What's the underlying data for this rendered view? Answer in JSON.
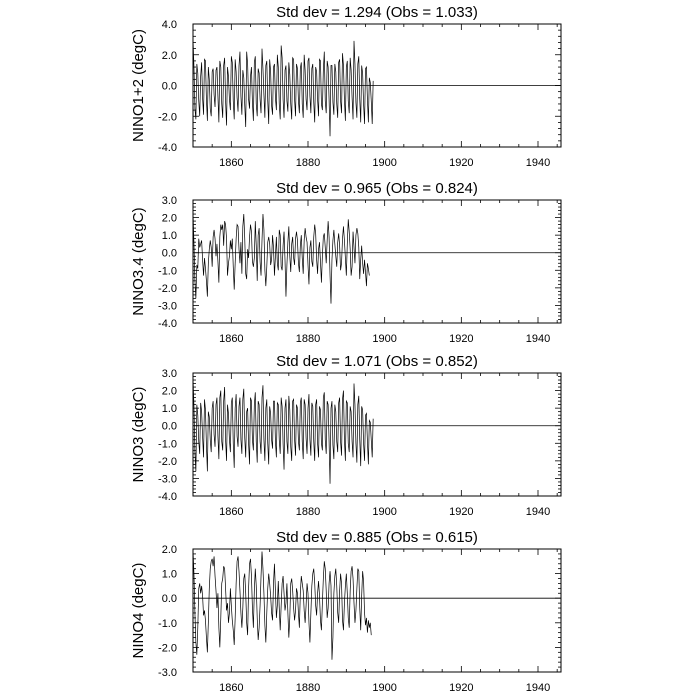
{
  "chart_data": [
    {
      "type": "line",
      "title": "Std dev = 1.294 (Obs = 1.033)",
      "ylabel": "NINO1+2 (degC)",
      "xlabel": "",
      "xlim": [
        1850,
        1946
      ],
      "ylim": [
        -4.0,
        4.0
      ],
      "y_tick_values": [
        -4,
        -2,
        0,
        2,
        4
      ],
      "y_tick_labels": [
        "-4.0",
        "-2.0",
        "0.0",
        "2.0",
        "4.0"
      ],
      "x_tick_values": [
        1860,
        1880,
        1900,
        1920,
        1940
      ],
      "x_tick_labels": [
        "1860",
        "1880",
        "1900",
        "1920",
        "1940"
      ],
      "reference_line": 0,
      "series": [
        {
          "name": "NINO1+2",
          "x_start": 1850,
          "x_step": 0.25,
          "values": [
            3.1,
            1.2,
            -1.5,
            -2.2,
            1.4,
            0.8,
            -1.0,
            -2.0,
            0.6,
            1.5,
            -0.8,
            -1.9,
            1.7,
            1.6,
            -0.9,
            -2.3,
            1.2,
            0.4,
            -1.5,
            -2.0,
            0.9,
            1.1,
            -0.6,
            -1.4,
            1.0,
            1.2,
            -0.7,
            -2.4,
            1.6,
            1.2,
            -1.2,
            -2.1,
            1.3,
            1.8,
            -1.0,
            -2.6,
            1.2,
            0.6,
            -0.9,
            -1.6,
            1.9,
            1.5,
            -1.0,
            -2.2,
            1.7,
            0.9,
            -0.8,
            -1.7,
            1.3,
            2.2,
            -0.7,
            -1.9,
            1.0,
            0.5,
            -1.3,
            -2.7,
            2.2,
            1.4,
            -0.9,
            -1.5,
            0.6,
            1.2,
            -1.1,
            -2.3,
            1.5,
            1.9,
            -1.2,
            -2.0,
            1.1,
            0.8,
            -0.9,
            -1.8,
            2.4,
            1.1,
            -0.6,
            -2.1,
            1.3,
            1.6,
            -1.0,
            -2.5,
            1.7,
            0.9,
            -1.3,
            -1.9,
            1.2,
            1.4,
            -0.8,
            -1.6,
            2.0,
            1.2,
            -1.2,
            -2.2,
            2.6,
            1.8,
            -0.9,
            -2.1,
            1.0,
            1.3,
            -1.0,
            -1.7,
            1.5,
            0.7,
            -1.2,
            -2.2,
            1.8,
            1.7,
            -0.9,
            -2.0,
            1.4,
            1.1,
            -1.0,
            -1.8,
            1.1,
            1.5,
            -1.2,
            -2.1,
            2.0,
            1.0,
            -0.9,
            -1.6,
            1.6,
            1.8,
            -0.7,
            -1.8,
            1.1,
            1.4,
            -1.1,
            -2.4,
            1.2,
            0.9,
            -0.9,
            -2.0,
            1.7,
            1.6,
            -1.2,
            -1.6,
            1.0,
            2.2,
            -1.0,
            -1.8,
            1.6,
            1.2,
            -0.9,
            -3.3,
            1.3,
            1.3,
            -1.1,
            -1.9,
            1.4,
            0.9,
            -1.2,
            -2.1,
            1.5,
            1.7,
            -1.0,
            -1.8,
            2.1,
            1.3,
            -0.9,
            -2.3,
            1.2,
            1.6,
            -1.0,
            -1.8,
            1.8,
            1.0,
            -0.8,
            -2.2,
            2.9,
            1.4,
            -1.1,
            -2.1,
            1.4,
            1.9,
            -0.9,
            -2.4,
            1.3,
            0.8,
            -1.2,
            -2.5,
            1.1,
            1.2,
            -0.9,
            -2.4,
            0.5,
            0.2,
            -1.0,
            -2.5,
            0.3
          ]
        }
      ]
    },
    {
      "type": "line",
      "title": "Std dev = 0.965 (Obs = 0.824)",
      "ylabel": "NINO3.4 (degC)",
      "xlabel": "",
      "xlim": [
        1850,
        1946
      ],
      "ylim": [
        -4.0,
        3.0
      ],
      "y_tick_values": [
        -4,
        -3,
        -2,
        -1,
        0,
        1,
        2,
        3
      ],
      "y_tick_labels": [
        "-4.0",
        "-3.0",
        "-2.0",
        "-1.0",
        "0.0",
        "1.0",
        "2.0",
        "3.0"
      ],
      "x_tick_values": [
        1860,
        1880,
        1900,
        1920,
        1940
      ],
      "x_tick_labels": [
        "1860",
        "1880",
        "1900",
        "1920",
        "1940"
      ],
      "reference_line": 0,
      "series": [
        {
          "name": "NINO3.4",
          "x_start": 1850,
          "x_step": 0.25,
          "values": [
            2.4,
            0.5,
            -1.6,
            -2.6,
            -0.7,
            -0.9,
            0.8,
            0.3,
            0.5,
            0.7,
            -0.4,
            -1.3,
            -0.3,
            -0.9,
            -1.6,
            -2.5,
            -0.6,
            0.2,
            0.7,
            0.3,
            -0.8,
            0.9,
            1.3,
            0.8,
            -0.2,
            0.5,
            -0.5,
            -1.7,
            0.9,
            1.6,
            1.3,
            1.6,
            0.4,
            1.8,
            1.6,
            0.8,
            -1.3,
            -0.6,
            -0.2,
            0.7,
            0.2,
            0.8,
            -0.8,
            -2.1,
            -0.6,
            0.8,
            1.6,
            1.5,
            0.2,
            -0.6,
            0.6,
            -1.2,
            1.5,
            2.2,
            0.8,
            -1.2,
            -1.5,
            0.2,
            -0.3,
            0.9,
            1.6,
            1.2,
            -0.5,
            -0.8,
            -0.3,
            1.8,
            0.4,
            -1.6,
            1.0,
            1.4,
            -0.5,
            -1.3,
            0.7,
            2.2,
            1.3,
            -1.0,
            -1.9,
            -0.8,
            0.6,
            0.9,
            0.5,
            -0.7,
            -0.4,
            1.0,
            0.3,
            -1.3,
            -0.2,
            0.9,
            -0.6,
            -1.0,
            1.3,
            1.0,
            -0.8,
            -1.0,
            0.4,
            1.2,
            -0.4,
            -2.5,
            -0.7,
            0.6,
            1.5,
            -0.2,
            -1.1,
            0.5,
            0.9,
            -0.3,
            -0.7,
            0.8,
            1.2,
            0.7,
            -0.6,
            -1.1,
            0.4,
            1.0,
            -0.3,
            -1.2,
            0.7,
            1.4,
            0.9,
            0.6,
            -0.7,
            -1.8,
            0.3,
            0.7,
            -0.5,
            -0.8,
            0.9,
            1.6,
            1.1,
            -0.4,
            -1.2,
            0.2,
            0.6,
            -0.5,
            -1.7,
            -0.2,
            0.9,
            1.1,
            0.3,
            -0.6,
            0.7,
            1.8,
            0.9,
            -1.3,
            -2.9,
            -0.4,
            0.7,
            1.3,
            0.5,
            -0.2,
            -0.8,
            0.6,
            1.1,
            0.4,
            -1.0,
            -0.6,
            0.8,
            1.5,
            0.7,
            -0.3,
            -1.3,
            0.5,
            1.9,
            1.2,
            0.2,
            -1.3,
            -0.8,
            1.2,
            0.3,
            -0.6,
            1.0,
            1.4,
            1.1,
            0.3,
            -1.5,
            -0.4,
            0.4,
            -0.6,
            -1.2,
            -0.4,
            -1.1,
            -1.9,
            -0.6,
            -0.9,
            -1.3
          ]
        }
      ]
    },
    {
      "type": "line",
      "title": "Std dev = 1.071 (Obs = 0.852)",
      "ylabel": "NINO3 (degC)",
      "xlabel": "",
      "xlim": [
        1850,
        1946
      ],
      "ylim": [
        -4.0,
        3.0
      ],
      "y_tick_values": [
        -4,
        -3,
        -2,
        -1,
        0,
        1,
        2,
        3
      ],
      "y_tick_labels": [
        "-4.0",
        "-3.0",
        "-2.0",
        "-1.0",
        "0.0",
        "1.0",
        "2.0",
        "3.0"
      ],
      "x_tick_values": [
        1860,
        1880,
        1900,
        1920,
        1940
      ],
      "x_tick_labels": [
        "1860",
        "1880",
        "1900",
        "1920",
        "1940"
      ],
      "reference_line": 0,
      "series": [
        {
          "name": "NINO3",
          "x_start": 1850,
          "x_step": 0.25,
          "values": [
            2.8,
            1.1,
            -1.5,
            -2.6,
            1.2,
            0.6,
            -0.9,
            -1.6,
            1.3,
            0.8,
            -0.6,
            -1.8,
            1.5,
            0.9,
            -1.1,
            -2.6,
            0.8,
            0.5,
            -0.8,
            -1.5,
            1.0,
            1.4,
            -0.5,
            -1.2,
            1.2,
            1.6,
            -0.6,
            -1.9,
            1.6,
            2.0,
            -0.9,
            -1.4,
            1.4,
            2.2,
            -0.8,
            -2.0,
            1.2,
            0.7,
            -0.8,
            -1.5,
            1.3,
            1.6,
            -1.0,
            -2.4,
            1.0,
            1.8,
            -0.6,
            -1.2,
            1.1,
            1.6,
            -0.8,
            -1.6,
            1.5,
            2.1,
            -0.7,
            -1.8,
            0.8,
            1.0,
            -1.0,
            -2.2,
            1.6,
            1.4,
            -0.8,
            -1.4,
            1.2,
            1.9,
            -0.9,
            -2.1,
            1.4,
            1.2,
            -0.9,
            -1.6,
            1.6,
            2.3,
            -0.8,
            -2.0,
            1.0,
            1.5,
            -1.0,
            -2.2,
            1.1,
            0.7,
            -0.8,
            -1.3,
            1.4,
            1.4,
            -0.9,
            -1.8,
            1.3,
            1.2,
            -0.8,
            -1.6,
            1.6,
            1.1,
            -1.0,
            -2.5,
            1.0,
            1.5,
            -0.9,
            -1.6,
            1.7,
            0.9,
            -1.2,
            -2.0,
            1.4,
            1.5,
            -0.8,
            -1.7,
            1.2,
            1.0,
            -0.9,
            -1.4,
            1.3,
            1.6,
            -0.9,
            -1.9,
            1.5,
            1.2,
            -0.7,
            -1.6,
            1.0,
            1.8,
            -0.8,
            -1.7,
            1.3,
            1.1,
            -0.9,
            -2.0,
            1.2,
            1.5,
            -1.0,
            -1.8,
            1.1,
            0.9,
            -1.0,
            -1.4,
            1.6,
            1.9,
            -0.8,
            -1.6,
            1.4,
            1.2,
            -0.9,
            -3.3,
            1.0,
            1.4,
            -1.1,
            -1.9,
            1.2,
            0.8,
            -0.9,
            -1.5,
            1.3,
            1.6,
            -0.9,
            -1.7,
            1.5,
            2.0,
            -0.8,
            -2.0,
            1.4,
            1.3,
            -1.0,
            -1.5,
            1.1,
            0.8,
            -0.9,
            -1.8,
            2.4,
            1.2,
            -1.0,
            -2.1,
            1.2,
            1.7,
            -0.8,
            -2.3,
            1.1,
            0.9,
            -1.0,
            -2.0,
            0.6,
            0.7,
            -0.9,
            -2.2,
            0.3,
            0.2,
            -0.8,
            -1.8,
            0.4
          ]
        }
      ]
    },
    {
      "type": "line",
      "title": "Std dev = 0.885 (Obs = 0.615)",
      "ylabel": "NINO4 (degC)",
      "xlabel": "",
      "xlim": [
        1850,
        1946
      ],
      "ylim": [
        -3.0,
        2.0
      ],
      "y_tick_values": [
        -3,
        -2,
        -1,
        0,
        1,
        2
      ],
      "y_tick_labels": [
        "-3.0",
        "-2.0",
        "-1.0",
        "0.0",
        "1.0",
        "2.0"
      ],
      "x_tick_values": [
        1860,
        1880,
        1900,
        1920,
        1940
      ],
      "x_tick_labels": [
        "1860",
        "1880",
        "1900",
        "1920",
        "1940"
      ],
      "reference_line": 0,
      "series": [
        {
          "name": "NINO4",
          "x_start": 1850,
          "x_step": 0.25,
          "values": [
            2.0,
            1.0,
            -0.6,
            -1.8,
            -2.3,
            -1.2,
            0.4,
            0.6,
            0.2,
            0.5,
            0.1,
            -0.7,
            -0.5,
            -0.9,
            -1.6,
            -2.2,
            -1.0,
            0.4,
            1.2,
            1.5,
            1.6,
            1.3,
            1.7,
            0.9,
            0.3,
            -0.4,
            0.2,
            -1.2,
            -2.0,
            -0.8,
            0.6,
            0.8,
            1.3,
            1.2,
            0.4,
            -0.5,
            -0.2,
            -1.0,
            -0.6,
            0.4,
            -0.3,
            -0.9,
            -1.3,
            -1.9,
            -0.8,
            0.6,
            1.5,
            1.7,
            1.1,
            0.3,
            -0.6,
            -1.2,
            -0.4,
            0.8,
            1.0,
            0.2,
            -1.0,
            -1.5,
            0.4,
            1.4,
            1.6,
            0.9,
            -0.4,
            -1.2,
            0.3,
            1.2,
            0.5,
            -0.8,
            -1.7,
            -1.2,
            -0.3,
            0.9,
            1.9,
            1.2,
            0.2,
            -1.1,
            -1.8,
            -0.6,
            0.4,
            1.0,
            0.6,
            0.1,
            -0.6,
            -0.9,
            0.6,
            1.4,
            0.3,
            -0.8,
            -0.3,
            0.7,
            -0.4,
            -1.3,
            -0.3,
            0.6,
            0.9,
            0.2,
            -0.5,
            -0.2,
            0.6,
            -0.6,
            -1.6,
            -0.8,
            0.6,
            0.8,
            0.3,
            -0.4,
            -0.9,
            -0.5,
            0.4,
            0.2,
            -0.6,
            -1.2,
            0.2,
            0.9,
            0.6,
            0.3,
            -0.5,
            -1.0,
            -0.3,
            0.6,
            0.2,
            -1.0,
            -1.8,
            -0.6,
            0.5,
            1.0,
            1.2,
            0.6,
            -0.3,
            -0.7,
            0.2,
            0.7,
            0.1,
            -0.9,
            -1.3,
            -0.2,
            0.8,
            1.5,
            1.2,
            0.3,
            -0.8,
            -0.4,
            0.6,
            1.1,
            0.5,
            -2.5,
            -1.6,
            0.2,
            0.9,
            1.2,
            0.5,
            -0.6,
            -1.0,
            0.3,
            1.0,
            0.6,
            -0.9,
            -1.3,
            -0.2,
            0.5,
            1.0,
            0.2,
            -0.8,
            -1.2,
            0.3,
            1.1,
            1.3,
            0.8,
            -0.2,
            -1.0,
            -0.5,
            0.4,
            1.2,
            1.1,
            -0.4,
            -1.3,
            0.1,
            1.1,
            0.7,
            -0.6,
            -1.1,
            -0.8,
            -1.4,
            -0.9,
            -1.2,
            -1.0,
            -1.5
          ]
        }
      ]
    }
  ]
}
